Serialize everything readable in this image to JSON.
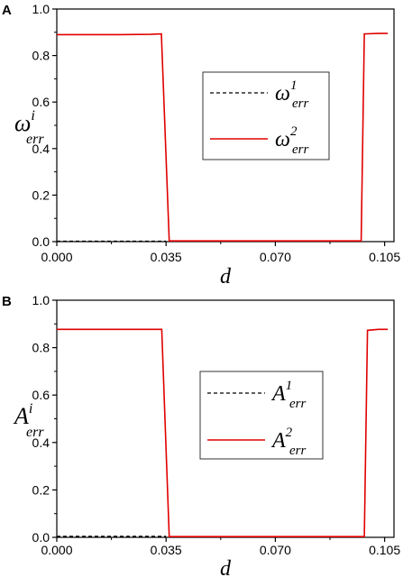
{
  "chart_data": [
    {
      "type": "line",
      "panel": "A",
      "xlabel": "d",
      "ylabel": {
        "base": "ω",
        "sup": "i",
        "sub": "err"
      },
      "xlim": [
        0.0,
        0.108
      ],
      "ylim": [
        0.0,
        1.0
      ],
      "xticks": [
        "0.000",
        "0.035",
        "0.070",
        "0.105"
      ],
      "yticks": [
        "0.0",
        "0.2",
        "0.4",
        "0.6",
        "0.8",
        "1.0"
      ],
      "legend_position": "center-right",
      "series": [
        {
          "name": {
            "base": "ω",
            "sup": "1",
            "sub": "err"
          },
          "color": "#000000",
          "dash": "dashed",
          "x": [
            0.0,
            0.035
          ],
          "y": [
            0.002,
            0.002
          ]
        },
        {
          "name": {
            "base": "ω",
            "sup": "2",
            "sub": "err"
          },
          "color": "#e00000",
          "dash": "solid",
          "x": [
            0.0,
            0.01,
            0.02,
            0.03,
            0.0335,
            0.036,
            0.04,
            0.05,
            0.06,
            0.07,
            0.08,
            0.09,
            0.0975,
            0.0985,
            0.103,
            0.106
          ],
          "y": [
            0.89,
            0.89,
            0.89,
            0.891,
            0.893,
            0.003,
            0.003,
            0.003,
            0.003,
            0.003,
            0.003,
            0.003,
            0.003,
            0.893,
            0.895,
            0.895
          ]
        }
      ]
    },
    {
      "type": "line",
      "panel": "B",
      "xlabel": "d",
      "ylabel": {
        "base": "A",
        "sup": "i",
        "sub": "err"
      },
      "xlim": [
        0.0,
        0.108
      ],
      "ylim": [
        0.0,
        1.0
      ],
      "xticks": [
        "0.000",
        "0.035",
        "0.070",
        "0.105"
      ],
      "yticks": [
        "0.0",
        "0.2",
        "0.4",
        "0.6",
        "0.8",
        "1.0"
      ],
      "legend_position": "center-right",
      "series": [
        {
          "name": {
            "base": "A",
            "sup": "1",
            "sub": "err"
          },
          "color": "#000000",
          "dash": "dashed",
          "x": [
            0.0,
            0.035
          ],
          "y": [
            0.004,
            0.004
          ]
        },
        {
          "name": {
            "base": "A",
            "sup": "2",
            "sub": "err"
          },
          "color": "#e00000",
          "dash": "solid",
          "x": [
            0.0,
            0.01,
            0.02,
            0.03,
            0.0336,
            0.036,
            0.04,
            0.05,
            0.06,
            0.07,
            0.08,
            0.09,
            0.0985,
            0.0995,
            0.103,
            0.106
          ],
          "y": [
            0.877,
            0.877,
            0.877,
            0.877,
            0.877,
            0.003,
            0.003,
            0.003,
            0.003,
            0.003,
            0.003,
            0.003,
            0.003,
            0.873,
            0.877,
            0.877
          ]
        }
      ]
    }
  ]
}
